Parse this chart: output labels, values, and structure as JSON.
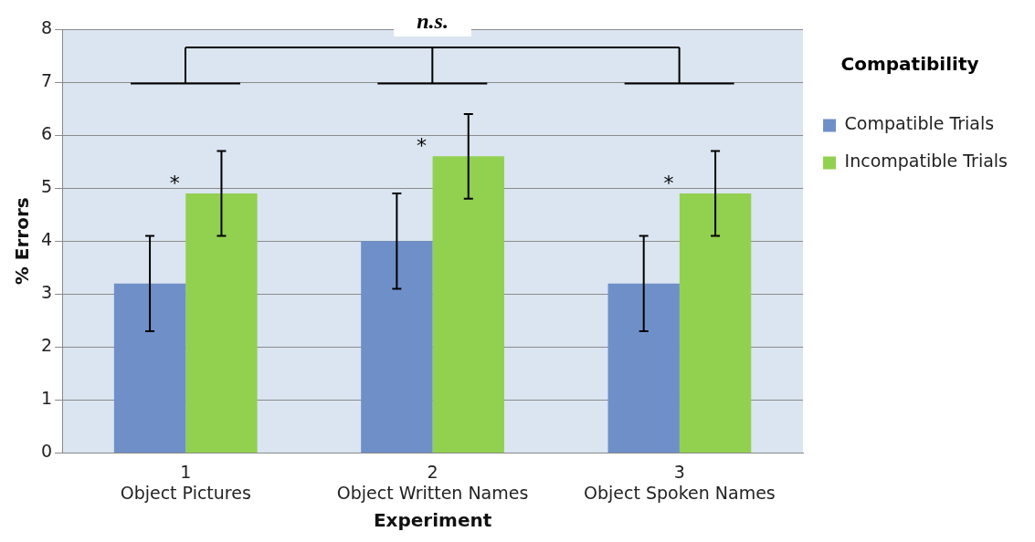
{
  "chart_data": {
    "type": "bar",
    "xlabel": "Experiment",
    "ylabel": "% Errors",
    "legend_title": "Compatibility",
    "categories": [
      "1\nObject Pictures",
      "2\nObject Written Names",
      "3\nObject Spoken Names"
    ],
    "series": [
      {
        "name": "Compatible Trials",
        "color": "#6f8fc8",
        "values": [
          3.2,
          4.0,
          3.2
        ],
        "errors": [
          0.9,
          0.9,
          0.9
        ]
      },
      {
        "name": "Incompatible Trials",
        "color": "#92d050",
        "values": [
          4.9,
          5.6,
          4.9
        ],
        "errors": [
          0.8,
          0.8,
          0.8
        ]
      }
    ],
    "ylim": [
      0,
      8
    ],
    "yticks": [
      0,
      1,
      2,
      3,
      4,
      5,
      6,
      7,
      8
    ],
    "grid": "y",
    "legend": "right",
    "annotations": [
      "*",
      "*",
      "*",
      "n.s."
    ]
  }
}
